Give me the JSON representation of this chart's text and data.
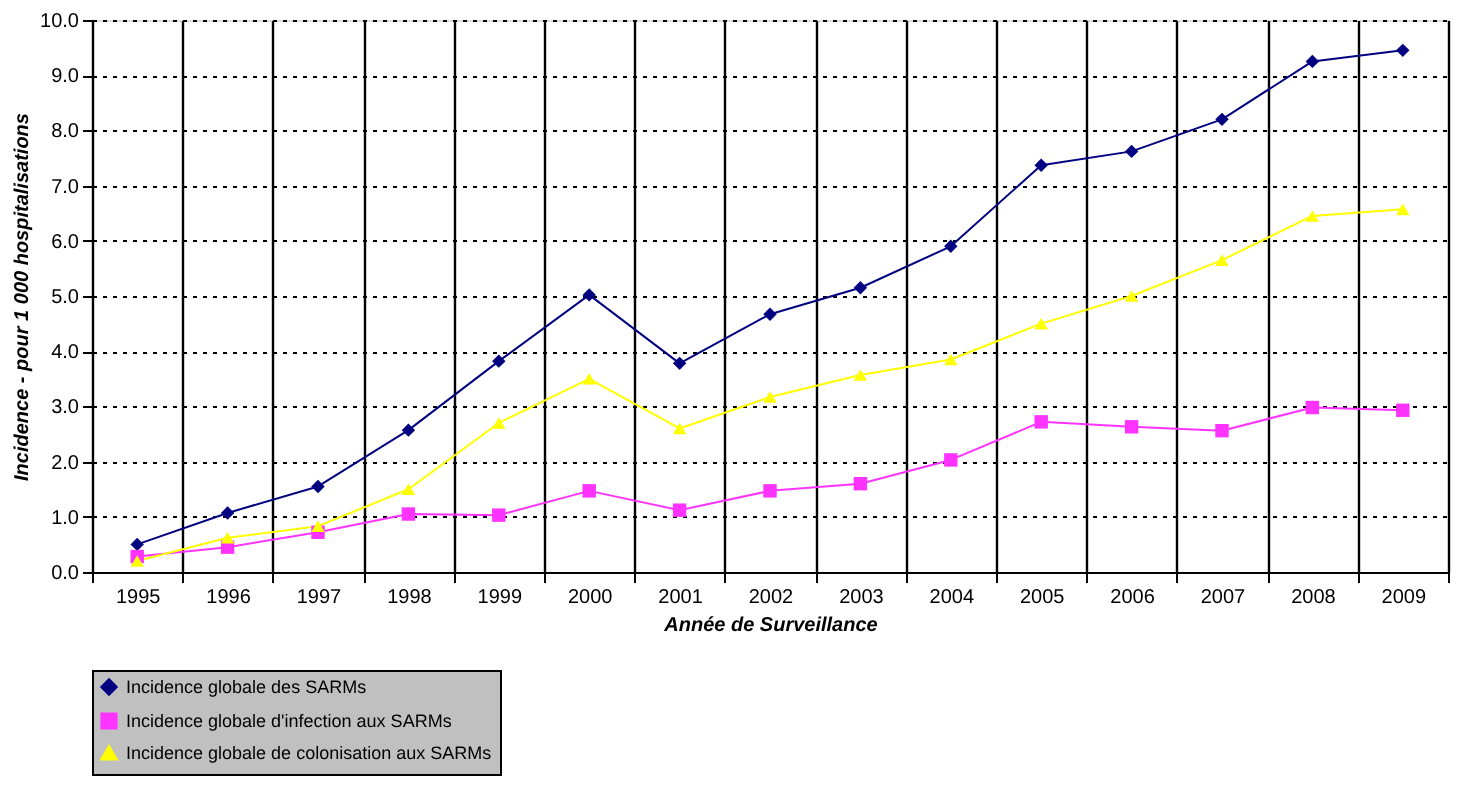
{
  "chart_data": {
    "type": "line",
    "xlabel": "Année de Surveillance",
    "ylabel": "Incidence - pour 1 000 hospitalisations",
    "categories": [
      "1995",
      "1996",
      "1997",
      "1998",
      "1999",
      "2000",
      "2001",
      "2002",
      "2003",
      "2004",
      "2005",
      "2006",
      "2007",
      "2008",
      "2009"
    ],
    "series": [
      {
        "name": "Incidence globale des SARMs",
        "color": "#000080",
        "marker": "diamond",
        "values": [
          0.5,
          1.07,
          1.55,
          2.57,
          3.82,
          5.02,
          3.78,
          4.67,
          5.15,
          5.9,
          7.37,
          7.62,
          8.2,
          9.25,
          9.45
        ]
      },
      {
        "name": "Incidence globale d'infection aux SARMs",
        "color": "#ff33ff",
        "marker": "square",
        "values": [
          0.28,
          0.45,
          0.72,
          1.05,
          1.03,
          1.47,
          1.12,
          1.47,
          1.6,
          2.03,
          2.72,
          2.63,
          2.56,
          2.98,
          2.93
        ]
      },
      {
        "name": "Incidence globale de colonisation aux SARMs",
        "color": "#ffff00",
        "marker": "triangle",
        "values": [
          0.2,
          0.62,
          0.83,
          1.5,
          2.7,
          3.5,
          2.6,
          3.17,
          3.57,
          3.85,
          4.5,
          5.0,
          5.65,
          6.45,
          6.57
        ]
      }
    ],
    "ylim": [
      0,
      10
    ],
    "yticks": [
      {
        "value": 0,
        "label": "0.0"
      },
      {
        "value": 1,
        "label": "1.0"
      },
      {
        "value": 2,
        "label": "2.0"
      },
      {
        "value": 3,
        "label": "3.0"
      },
      {
        "value": 4,
        "label": "4.0"
      },
      {
        "value": 5,
        "label": "5.0"
      },
      {
        "value": 6,
        "label": "6.0"
      },
      {
        "value": 7,
        "label": "7.0"
      },
      {
        "value": 8,
        "label": "8.0"
      },
      {
        "value": 9,
        "label": "9.0"
      },
      {
        "value": 10,
        "label": "10.0"
      }
    ],
    "grid": true,
    "legend": "bottom",
    "line_style": "solid"
  }
}
